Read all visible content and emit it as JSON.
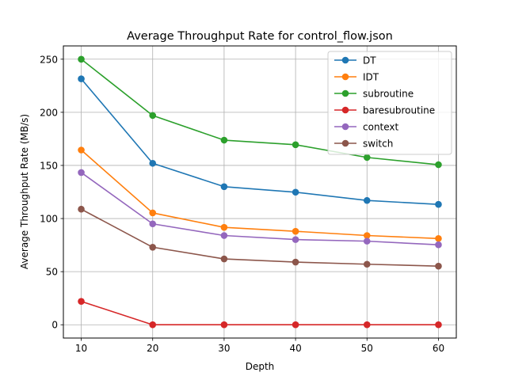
{
  "chart_data": {
    "type": "line",
    "title": "Average Throughput Rate for control_flow.json",
    "xlabel": "Depth",
    "ylabel": "Average Throughput Rate (MB/s)",
    "x": [
      10,
      20,
      30,
      40,
      50,
      60
    ],
    "xticks": [
      10,
      20,
      30,
      40,
      50,
      60
    ],
    "yticks": [
      0,
      50,
      100,
      150,
      200,
      250
    ],
    "xlim": [
      7.5,
      62.5
    ],
    "ylim": [
      -12.5,
      262.5
    ],
    "grid": true,
    "legend_position": "top-right",
    "series": [
      {
        "name": "DT",
        "color": "#1f77b4",
        "values": [
          231.5,
          152,
          130,
          124.8,
          117,
          113.3
        ]
      },
      {
        "name": "IDT",
        "color": "#ff7f0e",
        "values": [
          164.5,
          105.3,
          91.7,
          88,
          84,
          81.2
        ]
      },
      {
        "name": "subroutine",
        "color": "#2ca02c",
        "values": [
          250,
          197,
          173.8,
          169.5,
          157.5,
          150.7
        ]
      },
      {
        "name": "baresubroutine",
        "color": "#d62728",
        "values": [
          22,
          0,
          0,
          0,
          0,
          0
        ]
      },
      {
        "name": "context",
        "color": "#9467bd",
        "values": [
          143.3,
          95,
          84,
          80.2,
          78.7,
          75.3
        ]
      },
      {
        "name": "switch",
        "color": "#8c564b",
        "values": [
          108.8,
          73,
          62,
          59,
          57,
          55.2
        ]
      }
    ]
  }
}
